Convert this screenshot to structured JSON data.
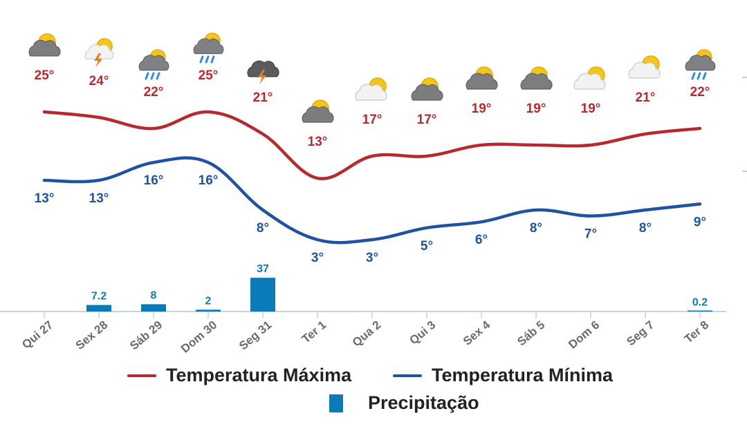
{
  "chart_data": {
    "type": "line",
    "categories": [
      "Qui 27",
      "Sex 28",
      "Sáb 29",
      "Dom 30",
      "Seg 31",
      "Ter 1",
      "Qua 2",
      "Qui 3",
      "Sex 4",
      "Sáb 5",
      "Dom 6",
      "Seg 7",
      "Ter 8"
    ],
    "series": [
      {
        "name": "Temperatura Máxima",
        "color": "#b8292f",
        "values": [
          25,
          24,
          22,
          25,
          21,
          13,
          17,
          17,
          19,
          19,
          19,
          21,
          22
        ],
        "labels": [
          "25°",
          "24°",
          "22°",
          "25°",
          "21°",
          "13°",
          "17°",
          "17°",
          "19°",
          "19°",
          "19°",
          "21°",
          "22°"
        ]
      },
      {
        "name": "Temperatura Mínima",
        "color": "#1f52a0",
        "values": [
          13,
          13,
          16,
          16,
          8,
          3,
          3,
          5,
          6,
          8,
          7,
          8,
          9
        ],
        "labels": [
          "13°",
          "13°",
          "16°",
          "16°",
          "8°",
          "3°",
          "3°",
          "5°",
          "6°",
          "8°",
          "7°",
          "8°",
          "9°"
        ]
      },
      {
        "name": "Precipitação",
        "type": "bar",
        "color": "#0a7bb8",
        "values": [
          null,
          7.2,
          8,
          2,
          37,
          null,
          null,
          null,
          null,
          null,
          null,
          null,
          0.2
        ],
        "labels": [
          "",
          "7.2",
          "8",
          "2",
          "37",
          "",
          "",
          "",
          "",
          "",
          "",
          "",
          "0.2"
        ]
      }
    ],
    "icons": [
      "cloudy-sun-icon",
      "storm-sun-icon",
      "rain-sun-icon",
      "rain-sun-icon",
      "storm-cloud-icon",
      "cloudy-sun-icon",
      "partly-cloudy-icon",
      "cloudy-sun-icon",
      "cloudy-sun-icon",
      "cloudy-sun-icon",
      "partly-cloudy-icon",
      "partly-cloudy-icon",
      "rain-sun-icon"
    ],
    "grid": false,
    "legend_position": "bottom"
  },
  "legend": {
    "max_label": "Temperatura Máxima",
    "min_label": "Temperatura Mínima",
    "precip_label": "Precipitação"
  }
}
